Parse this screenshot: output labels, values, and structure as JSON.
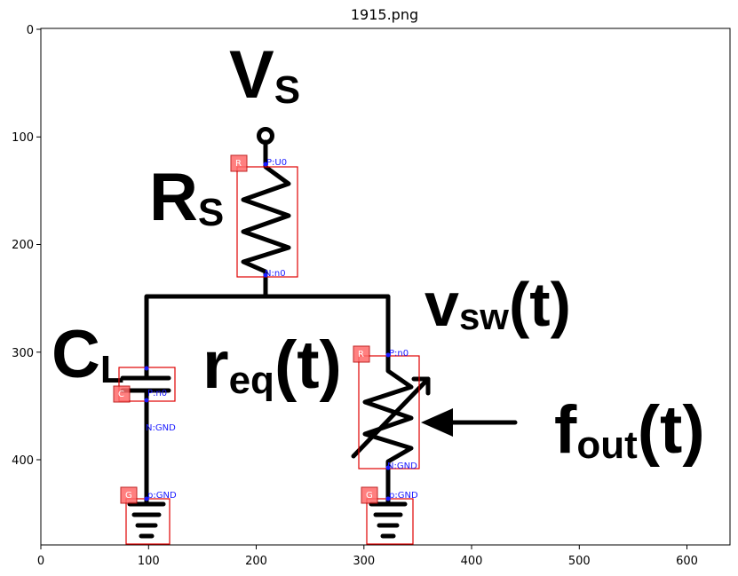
{
  "figure": {
    "title": "1915.png",
    "x_ticks": [
      "0",
      "100",
      "200",
      "300",
      "400",
      "500",
      "600"
    ],
    "y_ticks": [
      "0",
      "100",
      "200",
      "300",
      "400"
    ]
  },
  "circuit_labels": {
    "vs_main": "V",
    "vs_sub": "S",
    "rs_main": "R",
    "rs_sub": "S",
    "vsw_main": "v",
    "vsw_sub": "sw",
    "vsw_arg": "(t)",
    "cl_main": "C",
    "cl_sub": "L",
    "req_main": "r",
    "req_sub": "eq",
    "req_arg": "(t)",
    "fout_main": "f",
    "fout_sub": "out",
    "fout_arg": "(t)"
  },
  "annotations": [
    {
      "badge": "R",
      "pin_top": "P:U0",
      "pin_bottom": "N:n0"
    },
    {
      "badge": "C",
      "pin_top": "P:n0",
      "pin_bottom": "N:GND"
    },
    {
      "badge": "R",
      "pin_top": "P:n0",
      "pin_bottom": "N:GND"
    },
    {
      "badge": "G",
      "pin_top": "p:GND"
    },
    {
      "badge": "G",
      "pin_top": "p:GND"
    }
  ],
  "colors": {
    "box": "#e00000",
    "badge": "#ff6b6b",
    "pin_text": "#1a1aff"
  }
}
